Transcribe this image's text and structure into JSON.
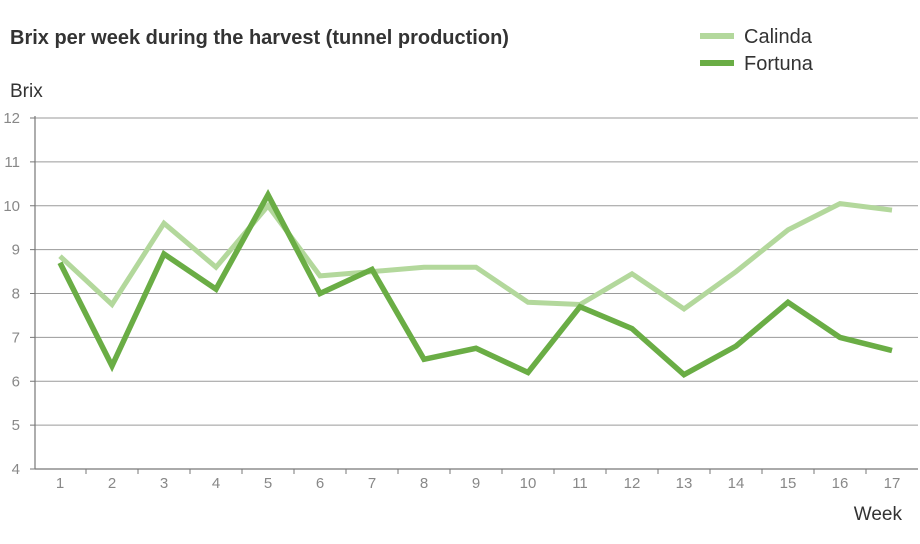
{
  "chart_data": {
    "type": "line",
    "title": "Brix per week during the harvest (tunnel production)",
    "xlabel": "Week",
    "ylabel": "Brix",
    "x": [
      "1",
      "2",
      "3",
      "4",
      "5",
      "6",
      "7",
      "8",
      "9",
      "10",
      "11",
      "12",
      "13",
      "14",
      "15",
      "16",
      "17"
    ],
    "ylim": [
      4,
      12
    ],
    "yticks": [
      "4",
      "5",
      "6",
      "7",
      "8",
      "9",
      "10",
      "11",
      "12"
    ],
    "grid": true,
    "legend_position": "top-right",
    "series": [
      {
        "name": "Calinda",
        "color": "#b3d89c",
        "values": [
          8.85,
          7.75,
          9.6,
          8.6,
          10.0,
          8.4,
          8.5,
          8.6,
          8.6,
          7.8,
          7.75,
          8.45,
          7.65,
          8.5,
          9.45,
          10.05,
          9.9
        ]
      },
      {
        "name": "Fortuna",
        "color": "#6aad45",
        "values": [
          8.7,
          6.35,
          8.9,
          8.1,
          10.25,
          8.0,
          8.55,
          6.5,
          6.75,
          6.2,
          7.7,
          7.2,
          6.15,
          6.8,
          7.8,
          7.0,
          6.7
        ]
      }
    ]
  }
}
